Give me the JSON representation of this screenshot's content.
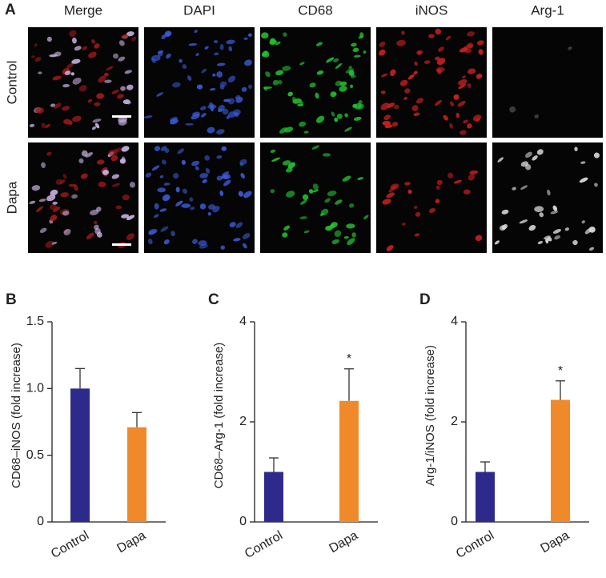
{
  "panel_a": {
    "label": "A",
    "columns": [
      "Merge",
      "DAPI",
      "CD68",
      "iNOS",
      "Arg-1"
    ],
    "rows": [
      "Control",
      "Dapa"
    ]
  },
  "chart_data": [
    {
      "type": "bar",
      "panel_label": "B",
      "y_label": "CD68–iNOS (fold increase)",
      "categories": [
        "Control",
        "Dapa"
      ],
      "values": [
        1.0,
        0.71
      ],
      "errors": [
        0.15,
        0.11
      ],
      "colors": [
        "#2e2a8c",
        "#f0892a"
      ],
      "significance": [
        null,
        null
      ],
      "ylim": [
        0,
        1.5
      ],
      "yticks": [
        0,
        0.5,
        {
          "value": 1,
          "label": "1.0"
        },
        {
          "value": 1.5,
          "label": "1.5"
        }
      ]
    },
    {
      "type": "bar",
      "panel_label": "C",
      "y_label": "CD68–Arg-1 (fold increase)",
      "categories": [
        "Control",
        "Dapa"
      ],
      "values": [
        1.0,
        2.42
      ],
      "errors": [
        0.28,
        0.64
      ],
      "colors": [
        "#2e2a8c",
        "#f0892a"
      ],
      "significance": [
        null,
        "*"
      ],
      "ylim": [
        0,
        4
      ],
      "yticks": [
        0,
        2,
        4
      ]
    },
    {
      "type": "bar",
      "panel_label": "D",
      "y_label": "Arg-1/iNOS (fold increase)",
      "categories": [
        "Control",
        "Dapa"
      ],
      "values": [
        1.0,
        2.44
      ],
      "errors": [
        0.2,
        0.38
      ],
      "colors": [
        "#2e2a8c",
        "#f0892a"
      ],
      "significance": [
        null,
        "*"
      ],
      "ylim": [
        0,
        4
      ],
      "yticks": [
        0,
        2,
        4
      ]
    }
  ]
}
